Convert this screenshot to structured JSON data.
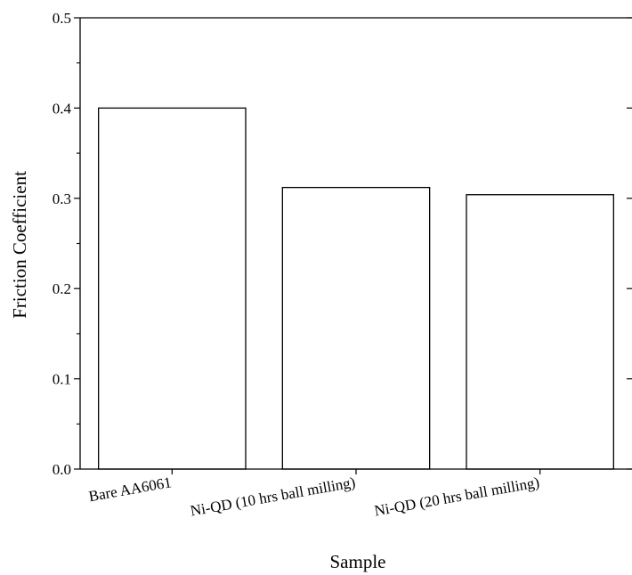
{
  "chart_data": {
    "type": "bar",
    "title": "",
    "xlabel": "Sample",
    "ylabel": "Friction Coefficient",
    "categories": [
      "Bare AA6061",
      "Ni-QD (10 hrs ball milling)",
      "Ni-QD (20 hrs ball milling)"
    ],
    "values": [
      0.4,
      0.312,
      0.304
    ],
    "ylim": [
      0.0,
      0.5
    ],
    "yticks": [
      "0.0",
      "0.1",
      "0.2",
      "0.3",
      "0.4",
      "0.5"
    ],
    "grid": false,
    "legend": "none",
    "bar_fill": "#ffffff",
    "bar_stroke": "#000000"
  }
}
